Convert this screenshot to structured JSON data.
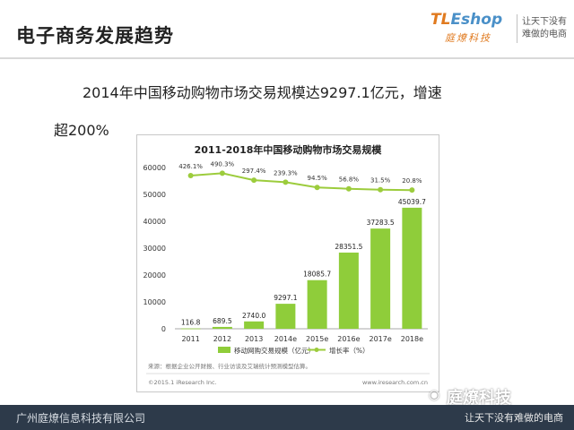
{
  "page": {
    "title": "电子商务发展趋势",
    "headline_line1": "2014年中国移动购物市场交易规模达9297.1亿元，增速",
    "headline_line2": "超200%"
  },
  "brand": {
    "logo_text_t": "TL",
    "logo_text_rest": "Eshop",
    "logo_cn": "庭燎科技",
    "slogan_line1": "让天下没有",
    "slogan_line2": "难做的电商"
  },
  "footer": {
    "company": "广州庭燎信息科技有限公司",
    "slogan": "让天下没有难做的电商",
    "watermark": "庭燎科技"
  },
  "colors": {
    "bar": "#8fcd3a",
    "line": "#9ccc3c",
    "footer": "#2d3a4a"
  },
  "chart_data": {
    "type": "bar",
    "title": "2011-2018年中国移动购物市场交易规模",
    "categories": [
      "2011",
      "2012",
      "2013",
      "2014e",
      "2015e",
      "2016e",
      "2017e",
      "2018e"
    ],
    "series": [
      {
        "name": "移动网购交易规模（亿元）",
        "type": "bar",
        "values": [
          116.8,
          689.5,
          2740.0,
          9297.1,
          18085.7,
          28351.5,
          37283.5,
          45039.7
        ],
        "labels": [
          "116.8",
          "689.5",
          "2740.0",
          "9297.1",
          "18085.7",
          "28351.5",
          "37283.5",
          "45039.7"
        ]
      },
      {
        "name": "增长率（%）",
        "type": "line",
        "values": [
          426.1,
          490.3,
          297.4,
          239.3,
          94.5,
          56.8,
          31.5,
          20.8
        ],
        "labels": [
          "426.1%",
          "490.3%",
          "297.4%",
          "239.3%",
          "94.5%",
          "56.8%",
          "31.5%",
          "20.8%"
        ]
      }
    ],
    "y_ticks": [
      "60000",
      "50000",
      "40000",
      "30000",
      "20000",
      "10000",
      "0"
    ],
    "ylim": [
      0,
      60000
    ],
    "grid": false,
    "legend_position": "bottom",
    "source_note": "来源：根据企业公开财报、行业访谈及艾瑞统计预测模型估算。",
    "copyright": "©2015.1 iResearch Inc.",
    "website": "www.iresearch.com.cn"
  }
}
